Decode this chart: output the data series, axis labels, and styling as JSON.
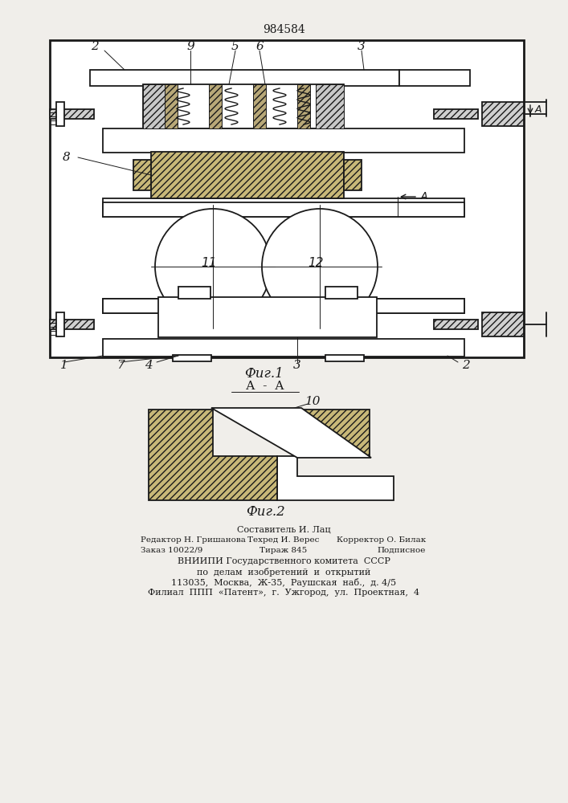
{
  "patent_number": "984584",
  "fig1_caption": "Фиг.1",
  "fig2_caption": "Фиг.2",
  "section_label": "А - А",
  "footer_line1": "Составитель И. Лац",
  "footer_line2_left": "Редактор Н. Гришанова",
  "footer_line2_mid": "Техред И. Верес",
  "footer_line2_right": "Корректор О. Билак",
  "footer_line3_left": "Заказ 10022/9",
  "footer_line3_mid": "Тираж 845",
  "footer_line3_right": "Подписное",
  "footer_line4": "ВНИИПИ Государственного комитета  СССР",
  "footer_line5": "по  делам  изобретений  и  открытий",
  "footer_line6": "113035,  Москва,  Ж-35,  Раушская  наб.,  д. 4/5",
  "footer_line7": "Филиал  ППП  «Патент»,  г.  Ужгород,  ул.  Проектная,  4",
  "bg_color": "#f0eeea",
  "line_color": "#1a1a1a"
}
